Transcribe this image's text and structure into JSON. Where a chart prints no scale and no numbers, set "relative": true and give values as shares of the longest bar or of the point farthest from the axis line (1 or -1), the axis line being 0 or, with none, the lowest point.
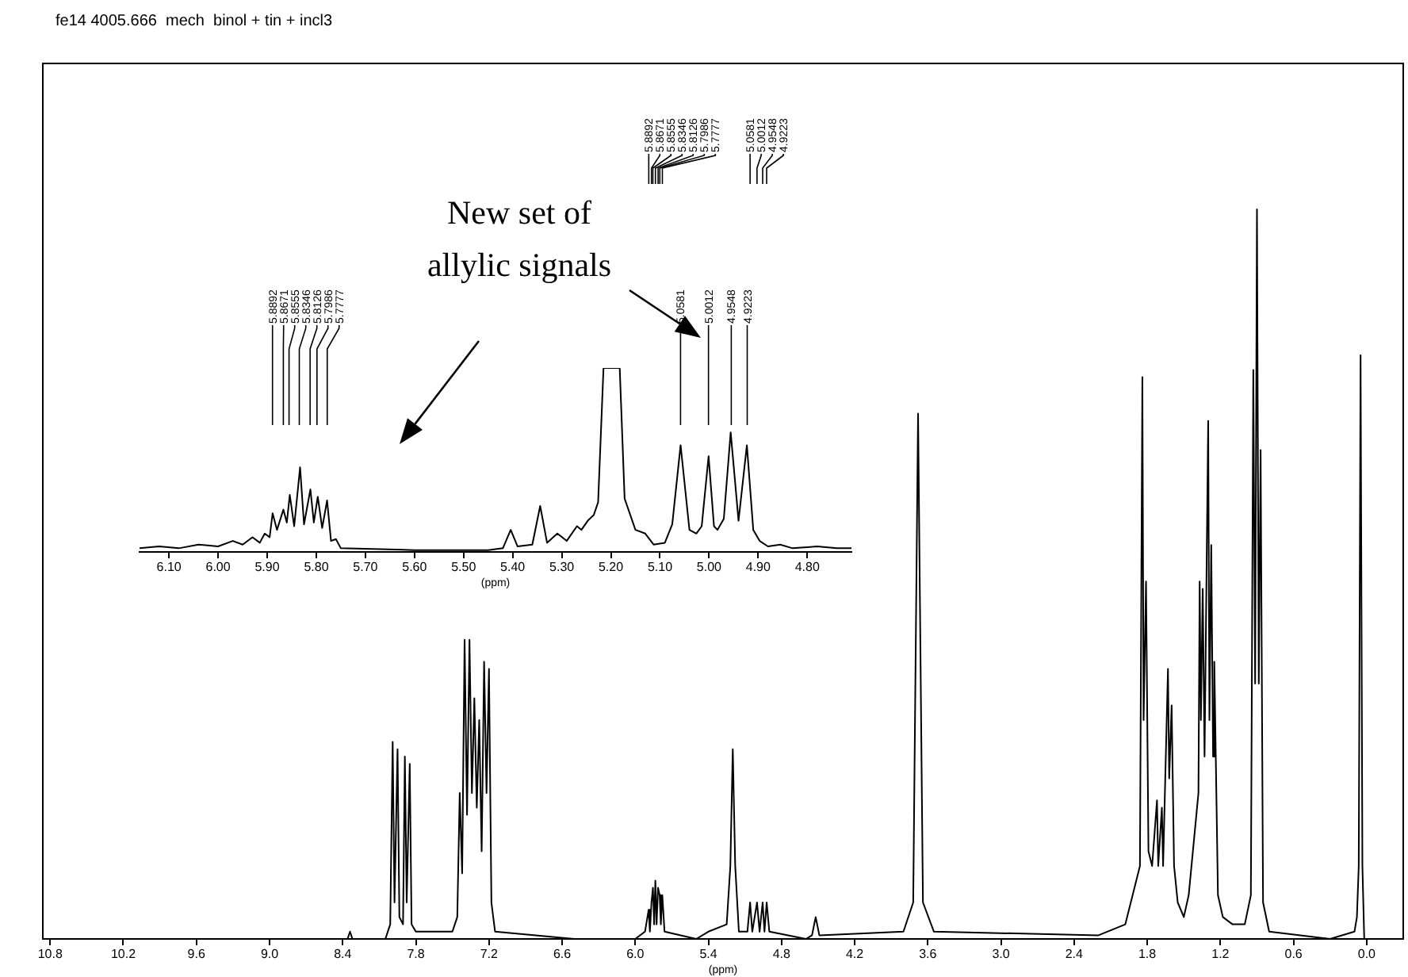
{
  "chart_data": [
    {
      "type": "line",
      "title": "fe14 4005.666  mech  binol + tin + incl3",
      "xlabel": "(ppm)",
      "relative": true,
      "color": "#000000",
      "xlim": [
        10.86,
        -0.3
      ],
      "xticks": [
        10.8,
        10.2,
        9.6,
        {
          "value": 9,
          "label": "9.0"
        },
        8.4,
        7.8,
        7.2,
        6.6,
        {
          "value": 6,
          "label": "6.0"
        },
        5.4,
        4.8,
        4.2,
        3.6,
        {
          "value": 3,
          "label": "3.0"
        },
        2.4,
        1.8,
        1.2,
        0.6,
        {
          "value": 0,
          "label": "0.0"
        }
      ],
      "x": [
        10.86,
        9.0,
        8.36,
        8.34,
        8.32,
        8.05,
        8.01,
        7.99,
        7.975,
        7.95,
        7.935,
        7.905,
        7.89,
        7.875,
        7.85,
        7.835,
        7.8,
        7.5,
        7.46,
        7.44,
        7.42,
        7.4,
        7.38,
        7.36,
        7.34,
        7.32,
        7.3,
        7.28,
        7.26,
        7.24,
        7.22,
        7.2,
        7.18,
        7.15,
        6.5,
        6.0,
        5.92,
        5.89,
        5.88,
        5.867,
        5.855,
        5.845,
        5.835,
        5.825,
        5.813,
        5.8,
        5.79,
        5.778,
        5.76,
        5.5,
        5.4,
        5.25,
        5.22,
        5.2,
        5.18,
        5.15,
        5.08,
        5.058,
        5.04,
        5.001,
        4.98,
        4.955,
        4.94,
        4.922,
        4.9,
        4.6,
        4.55,
        4.52,
        4.49,
        3.8,
        3.72,
        3.68,
        3.64,
        3.55,
        2.2,
        1.98,
        1.86,
        1.84,
        1.83,
        1.81,
        1.79,
        1.76,
        1.72,
        1.71,
        1.68,
        1.67,
        1.63,
        1.62,
        1.6,
        1.58,
        1.55,
        1.5,
        1.46,
        1.38,
        1.37,
        1.36,
        1.345,
        1.33,
        1.3,
        1.29,
        1.275,
        1.26,
        1.25,
        1.22,
        1.18,
        1.1,
        1.0,
        0.95,
        0.93,
        0.915,
        0.9,
        0.885,
        0.87,
        0.85,
        0.8,
        0.3,
        0.1,
        0.08,
        0.065,
        0.05,
        0.035,
        0.02,
        -0.3
      ],
      "values": [
        0,
        0,
        0,
        0.01,
        0,
        0,
        0.02,
        0.27,
        0.05,
        0.26,
        0.03,
        0.02,
        0.25,
        0.05,
        0.24,
        0.02,
        0.01,
        0.01,
        0.03,
        0.2,
        0.09,
        0.41,
        0.17,
        0.41,
        0.2,
        0.33,
        0.18,
        0.3,
        0.12,
        0.38,
        0.2,
        0.37,
        0.05,
        0.01,
        0,
        0,
        0.01,
        0.04,
        0.01,
        0.05,
        0.07,
        0.02,
        0.08,
        0.02,
        0.07,
        0.06,
        0.02,
        0.06,
        0.01,
        0,
        0.01,
        0.02,
        0.1,
        0.26,
        0.1,
        0.01,
        0.01,
        0.05,
        0.01,
        0.05,
        0.01,
        0.05,
        0.01,
        0.05,
        0.01,
        0,
        0.005,
        0.03,
        0.005,
        0.01,
        0.05,
        0.72,
        0.05,
        0.01,
        0.005,
        0.02,
        0.1,
        0.77,
        0.3,
        0.49,
        0.12,
        0.1,
        0.19,
        0.1,
        0.18,
        0.1,
        0.37,
        0.22,
        0.32,
        0.1,
        0.05,
        0.03,
        0.06,
        0.2,
        0.49,
        0.3,
        0.48,
        0.25,
        0.71,
        0.3,
        0.54,
        0.25,
        0.38,
        0.06,
        0.03,
        0.02,
        0.02,
        0.06,
        0.78,
        0.35,
        1,
        0.35,
        0.67,
        0.05,
        0.01,
        0,
        0.01,
        0.03,
        0.1,
        0.8,
        0.1,
        0,
        0
      ],
      "annotations": [
        {
          "text": "5.8892",
          "x": 5.8892
        },
        {
          "text": "5.8671",
          "x": 5.8671
        },
        {
          "text": "5.8555",
          "x": 5.8555
        },
        {
          "text": "5.8346",
          "x": 5.8346
        },
        {
          "text": "5.8126",
          "x": 5.8126
        },
        {
          "text": "5.7986",
          "x": 5.7986
        },
        {
          "text": "5.7777",
          "x": 5.7777
        },
        {
          "text": "5.0581",
          "x": 5.0581
        },
        {
          "text": "5.0012",
          "x": 5.0012
        },
        {
          "text": "4.9548",
          "x": 4.9548
        },
        {
          "text": "4.9223",
          "x": 4.9223
        }
      ]
    },
    {
      "type": "line",
      "xlabel": "(ppm)",
      "relative": true,
      "color": "#000000",
      "xlim": [
        6.16,
        4.71
      ],
      "xticks": [
        {
          "value": 6.1,
          "label": "6.10"
        },
        {
          "value": 6,
          "label": "6.00"
        },
        {
          "value": 5.9,
          "label": "5.90"
        },
        {
          "value": 5.8,
          "label": "5.80"
        },
        {
          "value": 5.7,
          "label": "5.70"
        },
        {
          "value": 5.6,
          "label": "5.60"
        },
        {
          "value": 5.5,
          "label": "5.50"
        },
        {
          "value": 5.4,
          "label": "5.40"
        },
        {
          "value": 5.3,
          "label": "5.30"
        },
        {
          "value": 5.2,
          "label": "5.20"
        },
        {
          "value": 5.1,
          "label": "5.10"
        },
        {
          "value": 5,
          "label": "5.00"
        },
        {
          "value": 4.9,
          "label": "4.90"
        },
        {
          "value": 4.8,
          "label": "4.80"
        }
      ],
      "x": [
        6.16,
        6.12,
        6.08,
        6.04,
        6.0,
        5.97,
        5.95,
        5.93,
        5.915,
        5.905,
        5.895,
        5.889,
        5.88,
        5.867,
        5.86,
        5.854,
        5.845,
        5.833,
        5.825,
        5.812,
        5.805,
        5.797,
        5.788,
        5.778,
        5.77,
        5.76,
        5.75,
        5.6,
        5.45,
        5.42,
        5.404,
        5.39,
        5.36,
        5.344,
        5.33,
        5.309,
        5.29,
        5.269,
        5.26,
        5.247,
        5.235,
        5.226,
        5.215,
        5.182,
        5.172,
        5.15,
        5.13,
        5.113,
        5.09,
        5.075,
        5.058,
        5.04,
        5.026,
        5.015,
        5.001,
        4.99,
        4.983,
        4.97,
        4.956,
        4.94,
        4.923,
        4.91,
        4.897,
        4.88,
        4.855,
        4.83,
        4.78,
        4.74,
        4.71
      ],
      "values": [
        0.02,
        0.03,
        0.02,
        0.04,
        0.03,
        0.06,
        0.04,
        0.08,
        0.05,
        0.1,
        0.08,
        0.21,
        0.12,
        0.23,
        0.16,
        0.31,
        0.14,
        0.46,
        0.15,
        0.34,
        0.16,
        0.3,
        0.13,
        0.28,
        0.06,
        0.07,
        0.02,
        0.01,
        0.01,
        0.02,
        0.12,
        0.03,
        0.04,
        0.25,
        0.05,
        0.1,
        0.06,
        0.14,
        0.12,
        0.17,
        0.2,
        0.27,
        1,
        1,
        0.29,
        0.12,
        0.1,
        0.04,
        0.05,
        0.15,
        0.58,
        0.12,
        0.1,
        0.14,
        0.52,
        0.14,
        0.12,
        0.18,
        0.65,
        0.17,
        0.58,
        0.12,
        0.06,
        0.03,
        0.04,
        0.02,
        0.03,
        0.02,
        0.02
      ],
      "annotations": [
        {
          "text": "5.8892",
          "x": 5.8892
        },
        {
          "text": "5.8671",
          "x": 5.8671
        },
        {
          "text": "5.8555",
          "x": 5.8555
        },
        {
          "text": "5.8346",
          "x": 5.8346
        },
        {
          "text": "5.8126",
          "x": 5.8126
        },
        {
          "text": "5.7986",
          "x": 5.7986
        },
        {
          "text": "5.7777",
          "x": 5.7777
        },
        {
          "text": "5.0581",
          "x": 5.0581
        },
        {
          "text": "5.0012",
          "x": 5.0012
        },
        {
          "text": "4.9548",
          "x": 4.9548
        },
        {
          "text": "4.9223",
          "x": 4.9223
        },
        "New set of allylic signals"
      ]
    }
  ]
}
